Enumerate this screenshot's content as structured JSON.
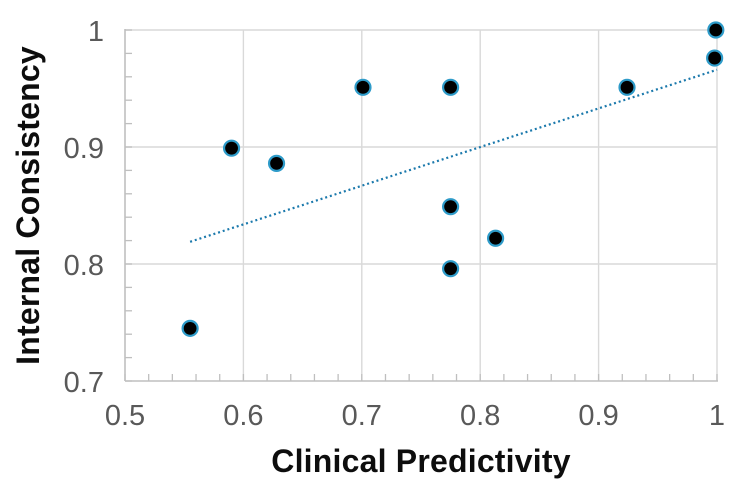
{
  "chart_data": {
    "type": "scatter",
    "title": "",
    "xlabel": "Clinical Predictivity",
    "ylabel": "Internal Consistency",
    "xlim": [
      0.5,
      1.0
    ],
    "ylim": [
      0.7,
      1.0
    ],
    "x_tick_values": [
      0.5,
      0.6,
      0.7,
      0.8,
      0.9,
      1.0
    ],
    "x_tick_labels": [
      "0.5",
      "0.6",
      "0.7",
      "0.8",
      "0.9",
      "1"
    ],
    "y_tick_values": [
      0.7,
      0.8,
      0.9,
      1.0
    ],
    "y_tick_labels": [
      "0.7",
      "0.8",
      "0.9",
      "1"
    ],
    "minor_tick_step": 0.02,
    "grid": true,
    "legend": "none",
    "marker_shape": "circle",
    "points": [
      {
        "x": 0.555,
        "y": 0.745
      },
      {
        "x": 0.59,
        "y": 0.899
      },
      {
        "x": 0.628,
        "y": 0.886
      },
      {
        "x": 0.701,
        "y": 0.951
      },
      {
        "x": 0.775,
        "y": 0.951
      },
      {
        "x": 0.775,
        "y": 0.849
      },
      {
        "x": 0.775,
        "y": 0.796
      },
      {
        "x": 0.813,
        "y": 0.822
      },
      {
        "x": 0.924,
        "y": 0.951
      },
      {
        "x": 0.999,
        "y": 1.0
      },
      {
        "x": 0.998,
        "y": 0.976
      }
    ],
    "trendline": {
      "style": "dotted",
      "x1": 0.555,
      "y1": 0.819,
      "x2": 1.0,
      "y2": 0.966
    },
    "colors": {
      "background": "#FFFFFF",
      "marker_fill": "#000000",
      "marker_border": "#2E9BC9",
      "trendline": "#1B79AC",
      "gridline": "#D9D9D9",
      "axis_line": "#BFBFBF",
      "tick_label": "#595959",
      "axis_title": "#0D0D0D"
    }
  }
}
